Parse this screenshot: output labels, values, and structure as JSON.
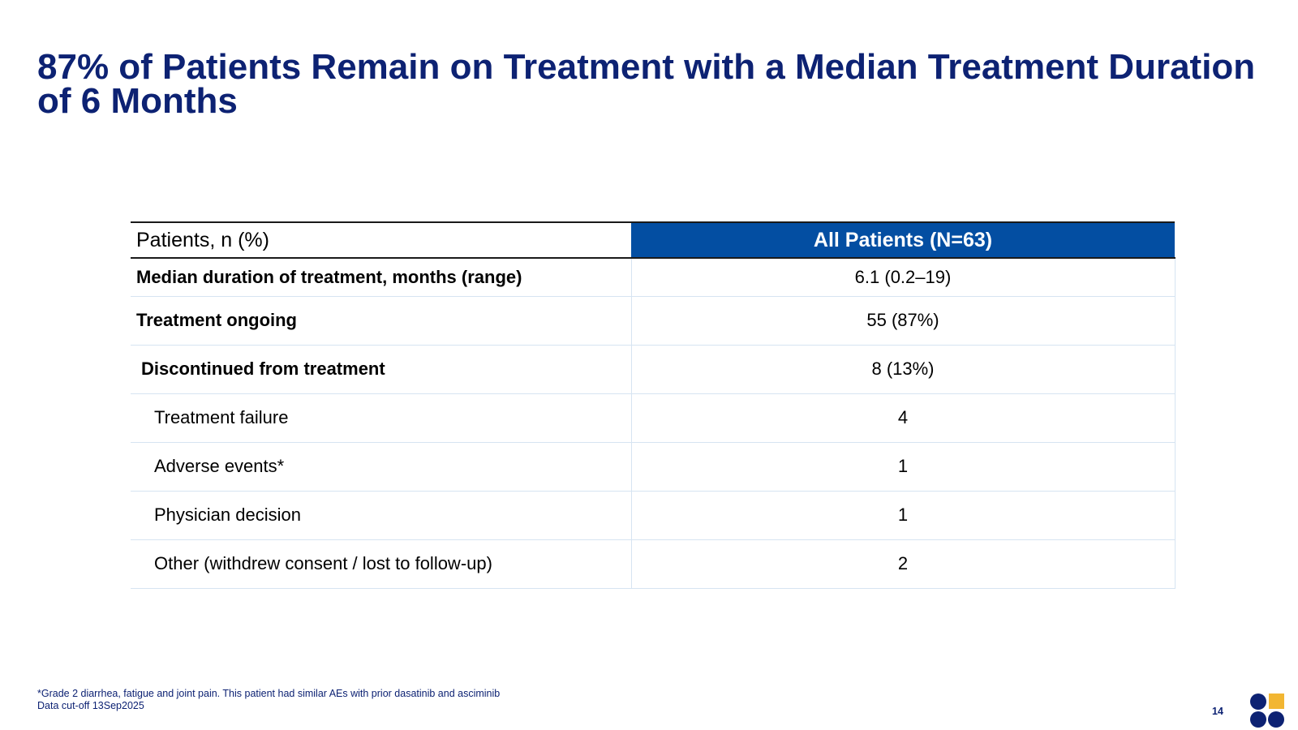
{
  "slide": {
    "title": "87% of Patients Remain on Treatment with a Median Treatment Duration of 6 Months",
    "page_number": "14"
  },
  "table": {
    "headers": [
      "Patients, n (%)",
      "All Patients (N=63)"
    ],
    "rows": [
      {
        "label": "Median duration of treatment, months (range)",
        "value": "6.1 (0.2–19)"
      },
      {
        "label": "Treatment ongoing",
        "value": "55 (87%)"
      },
      {
        "label": "Discontinued from treatment",
        "value": "8 (13%)"
      },
      {
        "label": "Treatment failure",
        "value": "4"
      },
      {
        "label": "Adverse events*",
        "value": "1"
      },
      {
        "label": "Physician decision",
        "value": "1"
      },
      {
        "label": "Other (withdrew consent / lost to follow-up)",
        "value": "2"
      }
    ]
  },
  "footnotes": {
    "line1": "*Grade 2 diarrhea, fatigue and joint pain. This patient had similar AEs with prior dasatinib and asciminib",
    "line2": "Data cut-off 13Sep2025"
  },
  "colors": {
    "title": "#0d2273",
    "header_fill": "#034ea2",
    "row_divider": "#d6e4f2",
    "logo_navy": "#0d2273",
    "logo_gold": "#f2b632"
  },
  "logo": {
    "icon": "company-logo-icon"
  }
}
